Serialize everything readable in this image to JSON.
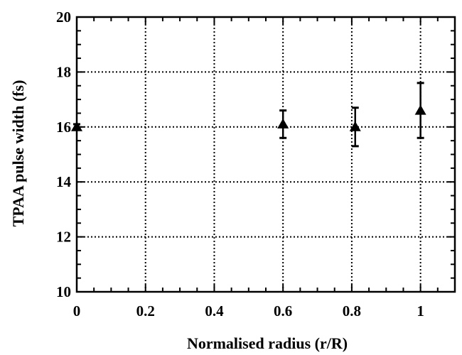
{
  "chart_data": {
    "type": "scatter",
    "title": "",
    "xlabel": "Normalised radius (r/R)",
    "ylabel": "TPAA pulse width (fs)",
    "xlim": [
      0,
      1.1
    ],
    "ylim": [
      10,
      20
    ],
    "x_ticks": [
      0,
      0.2,
      0.4,
      0.6,
      0.8,
      1
    ],
    "x_tick_labels": [
      "0",
      "0.2",
      "0.4",
      "0.6",
      "0.8",
      "1"
    ],
    "y_ticks": [
      10,
      12,
      14,
      16,
      18,
      20
    ],
    "y_tick_labels": [
      "10",
      "12",
      "14",
      "16",
      "18",
      "20"
    ],
    "grid": true,
    "marker": "triangle",
    "color": "#000000",
    "series": [
      {
        "points": [
          {
            "x": 0,
            "y": 16.0,
            "err_low": 15.9,
            "err_high": 16.1
          },
          {
            "x": 0.6,
            "y": 16.1,
            "err_low": 15.6,
            "err_high": 16.6
          },
          {
            "x": 0.81,
            "y": 16.0,
            "err_low": 15.3,
            "err_high": 16.7
          },
          {
            "x": 1,
            "y": 16.6,
            "err_low": 15.6,
            "err_high": 17.6
          }
        ]
      }
    ]
  }
}
